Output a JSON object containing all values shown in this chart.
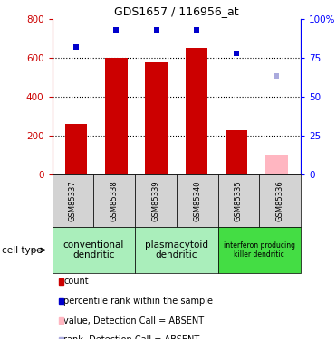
{
  "title": "GDS1657 / 116956_at",
  "samples": [
    "GSM85337",
    "GSM85338",
    "GSM85339",
    "GSM85340",
    "GSM85335",
    "GSM85336"
  ],
  "bar_values": [
    260,
    600,
    575,
    650,
    230,
    100
  ],
  "bar_colors": [
    "#cc0000",
    "#cc0000",
    "#cc0000",
    "#cc0000",
    "#cc0000",
    "#ffb6c1"
  ],
  "rank_values": [
    82,
    93,
    93,
    93,
    78,
    63
  ],
  "rank_colors": [
    "#0000cc",
    "#0000cc",
    "#0000cc",
    "#0000cc",
    "#0000cc",
    "#aaaadd"
  ],
  "ylim_left": [
    0,
    800
  ],
  "ylim_right": [
    0,
    100
  ],
  "yticks_left": [
    0,
    200,
    400,
    600,
    800
  ],
  "yticks_right": [
    0,
    25,
    50,
    75,
    100
  ],
  "yticklabels_right": [
    "0",
    "25",
    "50",
    "75",
    "100%"
  ],
  "cell_groups": [
    {
      "label": "conventional\ndendritic",
      "start": 0,
      "end": 2,
      "color": "#aaeebb"
    },
    {
      "label": "plasmacytoid\ndendritic",
      "start": 2,
      "end": 4,
      "color": "#aaeebb"
    },
    {
      "label": "interferon producing\nkiller dendritic",
      "start": 4,
      "end": 6,
      "color": "#44dd44"
    }
  ],
  "legend_items": [
    {
      "color": "#cc0000",
      "label": "count"
    },
    {
      "color": "#0000cc",
      "label": "percentile rank within the sample"
    },
    {
      "color": "#ffb6c1",
      "label": "value, Detection Call = ABSENT"
    },
    {
      "color": "#aaaadd",
      "label": "rank, Detection Call = ABSENT"
    }
  ],
  "cell_type_label": "cell type",
  "bg_color": "#ffffff"
}
